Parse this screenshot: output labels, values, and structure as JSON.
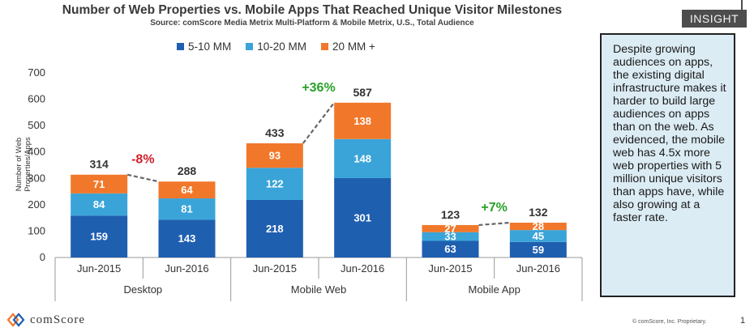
{
  "title": "Number of Web Properties vs. Mobile Apps That Reached Unique Visitor Milestones",
  "subtitle": "Source: comScore Media Metrix Multi-Platform & Mobile Metrix, U.S., Total Audience",
  "insight": {
    "tag": "INSIGHT",
    "text": "Despite growing audiences on apps, the existing digital infrastructure makes it harder to build large audiences on apps than on the web. As evidenced, the mobile web has 4.5x more web properties with 5 million unique visitors than apps have, while also growing at a faster rate."
  },
  "footer": {
    "logo": "comScore",
    "copyright": "© comScore, Inc. Proprietary.",
    "page": "1"
  },
  "colors": {
    "s1": "#1f5fb0",
    "s2": "#3aa4d9",
    "s3": "#f1782b",
    "negative": "#d0202b",
    "positive": "#2aa02a"
  },
  "chart_data": {
    "type": "bar",
    "stacked": true,
    "ylabel": "Number of Web Properties/Apps",
    "ylim": [
      0,
      700
    ],
    "yticks": [
      0,
      100,
      200,
      300,
      400,
      500,
      600,
      700
    ],
    "legend_position": "top",
    "groups": [
      "Desktop",
      "Mobile Web",
      "Mobile App"
    ],
    "categories": [
      "Jun-2015",
      "Jun-2016",
      "Jun-2015",
      "Jun-2016",
      "Jun-2015",
      "Jun-2016"
    ],
    "series": [
      {
        "name": "5-10 MM",
        "values": [
          159,
          143,
          218,
          301,
          63,
          59
        ]
      },
      {
        "name": "10-20 MM",
        "values": [
          84,
          81,
          122,
          148,
          33,
          45
        ]
      },
      {
        "name": "20 MM +",
        "values": [
          71,
          64,
          93,
          138,
          27,
          28
        ]
      }
    ],
    "totals": [
      314,
      288,
      433,
      587,
      123,
      132
    ],
    "changes": [
      {
        "group": "Desktop",
        "label": "-8%",
        "direction": "down"
      },
      {
        "group": "Mobile Web",
        "label": "+36%",
        "direction": "up"
      },
      {
        "group": "Mobile App",
        "label": "+7%",
        "direction": "up"
      }
    ]
  }
}
